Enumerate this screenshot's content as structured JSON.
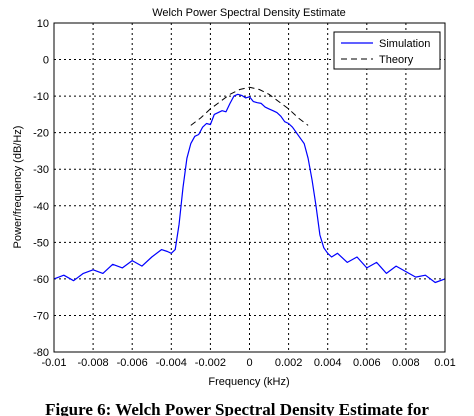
{
  "chart_data": {
    "type": "line",
    "title": "Welch Power Spectral Density Estimate",
    "xlabel": "Frequency (kHz)",
    "ylabel": "Power/frequency (dB/Hz)",
    "xlim": [
      -0.01,
      0.01
    ],
    "ylim": [
      -80,
      10
    ],
    "xticks": [
      -0.01,
      -0.008,
      -0.006,
      -0.004,
      -0.002,
      0,
      0.002,
      0.004,
      0.006,
      0.008,
      0.01
    ],
    "xtick_labels": [
      "-0.01",
      "-0.008",
      "-0.006",
      "-0.004",
      "-0.002",
      "0",
      "0.002",
      "0.004",
      "0.006",
      "0.008",
      "0.01"
    ],
    "yticks": [
      10,
      0,
      -10,
      -20,
      -30,
      -40,
      -50,
      -60,
      -70,
      -80
    ],
    "ytick_labels": [
      "10",
      "0",
      "-10",
      "-20",
      "-30",
      "-40",
      "-50",
      "-60",
      "-70",
      "-80"
    ],
    "grid": true,
    "legend_position": "top-right",
    "series": [
      {
        "name": "Simulation",
        "color": "#0000ff",
        "style": "solid",
        "x": [
          -0.01,
          -0.0095,
          -0.009,
          -0.0085,
          -0.008,
          -0.0075,
          -0.007,
          -0.0065,
          -0.006,
          -0.0055,
          -0.005,
          -0.0045,
          -0.0042,
          -0.004,
          -0.0038,
          -0.0036,
          -0.0034,
          -0.0032,
          -0.003,
          -0.0028,
          -0.0026,
          -0.0024,
          -0.0022,
          -0.002,
          -0.0018,
          -0.0016,
          -0.0014,
          -0.0012,
          -0.001,
          -0.0008,
          -0.0006,
          -0.0004,
          -0.0002,
          0,
          0.0002,
          0.0004,
          0.0006,
          0.0008,
          0.001,
          0.0012,
          0.0014,
          0.0016,
          0.0018,
          0.002,
          0.0022,
          0.0024,
          0.0026,
          0.0028,
          0.003,
          0.0032,
          0.0034,
          0.0036,
          0.0038,
          0.004,
          0.0042,
          0.0045,
          0.005,
          0.0055,
          0.006,
          0.0065,
          0.007,
          0.0075,
          0.008,
          0.0085,
          0.009,
          0.0095,
          0.01
        ],
        "y": [
          -60,
          -59,
          -60.5,
          -58.5,
          -57.5,
          -58.5,
          -56,
          -57,
          -55,
          -56.5,
          -54,
          -52,
          -52.5,
          -53,
          -52,
          -45,
          -35,
          -27,
          -23,
          -21,
          -20.5,
          -18.5,
          -17.5,
          -17.8,
          -15,
          -14.5,
          -14,
          -14.3,
          -12,
          -10,
          -9.5,
          -9.8,
          -10.5,
          -10.2,
          -11.5,
          -11.8,
          -12,
          -13,
          -13.5,
          -14,
          -14.5,
          -15.5,
          -17,
          -17.5,
          -18.5,
          -20,
          -21.5,
          -23,
          -27,
          -33,
          -40,
          -48,
          -51.5,
          -53,
          -54,
          -53,
          -55.5,
          -54,
          -57,
          -55.5,
          -58.5,
          -56.5,
          -58,
          -59.5,
          -59,
          -61,
          -60
        ]
      },
      {
        "name": "Theory",
        "color": "#000000",
        "style": "dashed",
        "x": [
          -0.003,
          -0.0025,
          -0.002,
          -0.0015,
          -0.001,
          -0.0005,
          0,
          0.0005,
          0.001,
          0.0015,
          0.002,
          0.0025,
          0.003
        ],
        "y": [
          -18,
          -16,
          -13.5,
          -11.5,
          -9.5,
          -8.2,
          -7.6,
          -8.2,
          -9.5,
          -11.5,
          -13.5,
          -16,
          -18
        ]
      }
    ]
  },
  "caption": "Figure 6: Welch Power Spectral Density Estimate for"
}
